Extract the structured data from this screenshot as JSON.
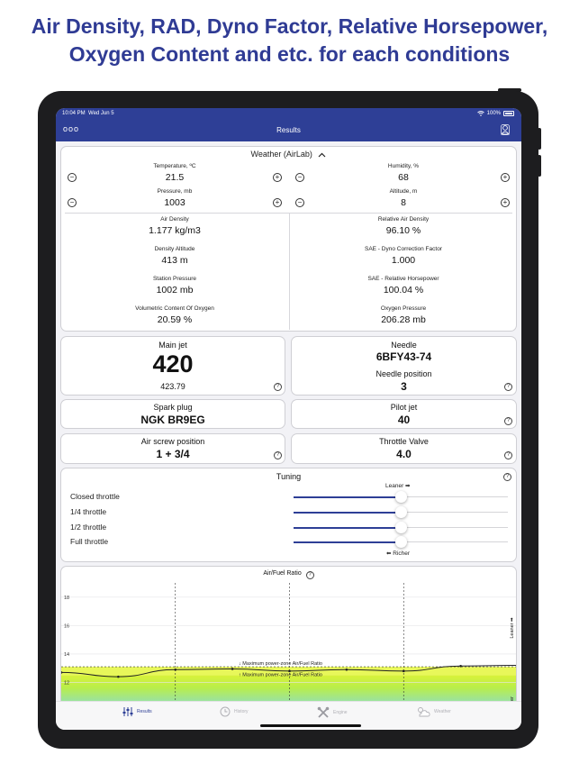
{
  "promo": {
    "line1": "Air Density, RAD, Dyno Factor, Relative Horsepower,",
    "line2": "Oxygen Content and etc. for each conditions"
  },
  "status": {
    "time": "10:04 PM",
    "date": "Wed Jun 5",
    "battery": "100%"
  },
  "nav": {
    "title": "Results",
    "menu": "ooo"
  },
  "weather": {
    "header": "Weather (AirLab)",
    "inputs": [
      {
        "label": "Temperature, ºC",
        "value": "21.5"
      },
      {
        "label": "Humidity, %",
        "value": "68"
      },
      {
        "label": "Pressure, mb",
        "value": "1003"
      },
      {
        "label": "Altitude, m",
        "value": "8"
      }
    ],
    "results_left": [
      {
        "label": "Air Density",
        "value": "1.177 kg/m3"
      },
      {
        "label": "Density Altitude",
        "value": "413 m"
      },
      {
        "label": "Station Pressure",
        "value": "1002 mb"
      },
      {
        "label": "Volumetric Content Of Oxygen",
        "value": "20.59 %"
      }
    ],
    "results_right": [
      {
        "label": "Relative Air Density",
        "value": "96.10 %"
      },
      {
        "label": "SAE - Dyno Correction Factor",
        "value": "1.000"
      },
      {
        "label": "SAE - Relative Horsepower",
        "value": "100.04 %"
      },
      {
        "label": "Oxygen Pressure",
        "value": "206.28 mb"
      }
    ]
  },
  "main_jet": {
    "title": "Main jet",
    "value": "420",
    "sub": "423.79"
  },
  "needle": {
    "title": "Needle",
    "value": "6BFY43-74",
    "pos_title": "Needle position",
    "pos_value": "3"
  },
  "spark_plug": {
    "title": "Spark plug",
    "value": "NGK BR9EG"
  },
  "pilot_jet": {
    "title": "Pilot jet",
    "value": "40"
  },
  "air_screw": {
    "title": "Air screw position",
    "value": "1 + 3/4"
  },
  "throttle_valve": {
    "title": "Throttle Valve",
    "value": "4.0"
  },
  "tuning": {
    "title": "Tuning",
    "leaner": "Leaner ➡",
    "richer": "⬅ Richer",
    "rows": [
      {
        "label": "Closed throttle",
        "level": 0.5
      },
      {
        "label": "1/4 throttle",
        "level": 0.5
      },
      {
        "label": "1/2 throttle",
        "level": 0.5
      },
      {
        "label": "Full throttle",
        "level": 0.5
      }
    ]
  },
  "chart_data": {
    "type": "line",
    "title": "Air/Fuel Ratio",
    "yticks": [
      "18",
      "16",
      "14",
      "12",
      "10"
    ],
    "ylim": [
      10,
      19
    ],
    "max_power_upper_label": "↓ Maximum power-zone Air/Fuel Ratio",
    "max_power_lower_label": "↑ Maximum power-zone Air/Fuel Ratio",
    "max_power_zone": [
      12.5,
      13.1
    ],
    "leaner_label": "Leaner ➡",
    "richer_label": "Richer",
    "series": [
      {
        "values": [
          12.7,
          12.4,
          12.9,
          12.95,
          12.8,
          12.9,
          12.8,
          13.15,
          13.2
        ]
      }
    ]
  },
  "tabs": [
    {
      "label": "Results",
      "icon": "sliders-icon",
      "active": true
    },
    {
      "label": "History",
      "icon": "clock-icon",
      "active": false
    },
    {
      "label": "Engine",
      "icon": "tools-icon",
      "active": false
    },
    {
      "label": "Weather",
      "icon": "cloud-sun-icon",
      "active": false
    }
  ],
  "colors": {
    "accent": "#2e3f96",
    "promo": "#2f3b94"
  }
}
